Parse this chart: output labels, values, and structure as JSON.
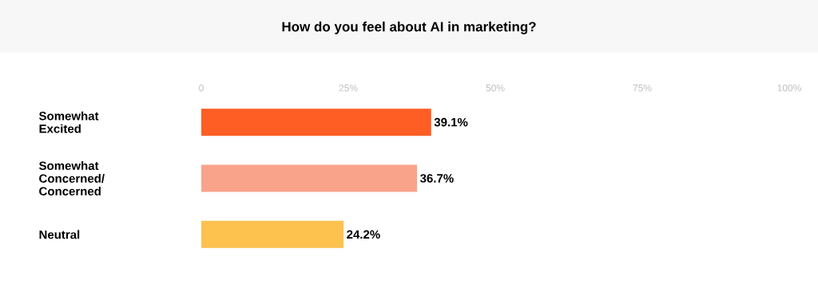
{
  "chart_data": {
    "type": "bar",
    "orientation": "horizontal",
    "title": "How do you feel about AI in marketing?",
    "categories": [
      "Somewhat Excited",
      "Somewhat Concerned/ Concerned",
      "Neutral"
    ],
    "values": [
      39.1,
      36.7,
      24.2
    ],
    "colors": [
      "#fe5d24",
      "#f9a38a",
      "#fdc14e"
    ],
    "value_labels": [
      "39.1%",
      "36.7%",
      "24.2%"
    ],
    "xlim": [
      0,
      100
    ],
    "xticks": [
      0,
      {
        "value": 25,
        "label": "25%"
      },
      {
        "value": 50,
        "label": "50%"
      },
      {
        "value": 75,
        "label": "75%"
      },
      {
        "value": 100,
        "label": "100%"
      }
    ]
  }
}
